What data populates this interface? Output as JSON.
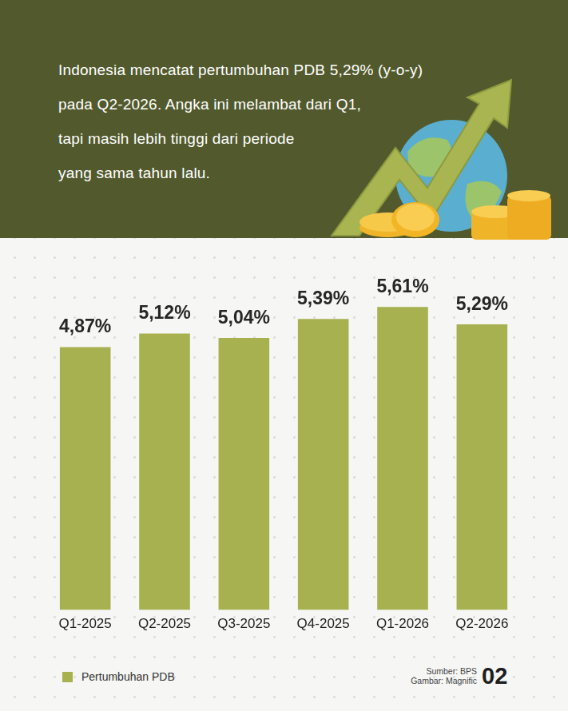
{
  "chart_data": {
    "type": "bar",
    "title": "Indonesia mencatat pertumbuhan PDB 5,29% (y-o-y)\npada Q2-2026. Angka ini melambat dari Q1,\ntapi masih lebih tinggi dari periode\nyang sama tahun lalu.",
    "categories": [
      "Q1-2025",
      "Q2-2025",
      "Q3-2025",
      "Q4-2025",
      "Q1-2026",
      "Q2-2026"
    ],
    "series": [
      {
        "name": "Pertumbuhan PDB",
        "color": "#a7b14f",
        "values": [
          4.87,
          5.12,
          5.04,
          5.39,
          5.61,
          5.29
        ],
        "value_labels": [
          "4,87%",
          "5,12%",
          "5,04%",
          "5,39%",
          "5,61%",
          "5,29%"
        ]
      }
    ],
    "ylim": [
      0,
      6
    ],
    "grid": false,
    "tick_labels": "x",
    "data_labels": true,
    "legend": "bottom-left",
    "annotations": [
      "Sumber: BPS",
      "Gambar: Magnific",
      "02"
    ]
  }
}
